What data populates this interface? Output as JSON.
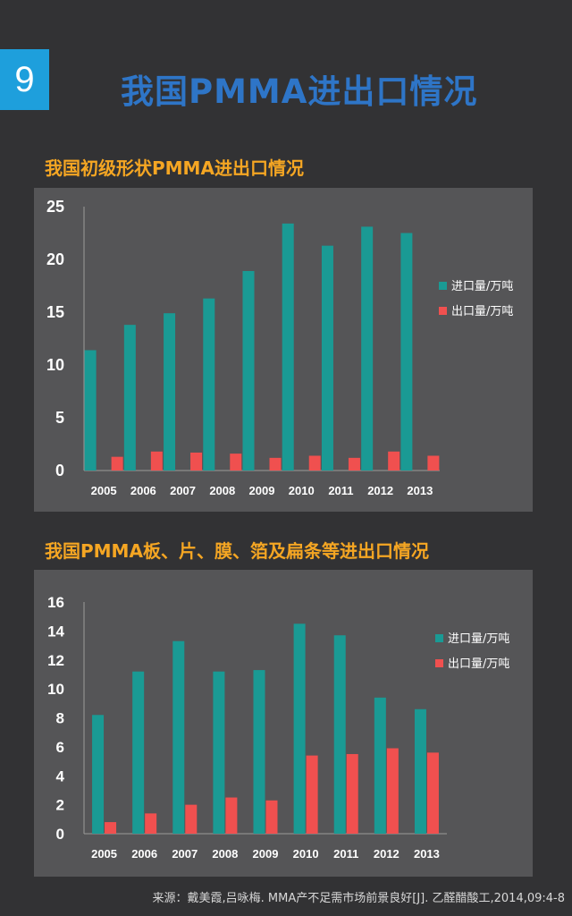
{
  "header": {
    "page_number": "9",
    "title": "我国PMMA进出口情况"
  },
  "sections": [
    {
      "title": "我国初级形状PMMA进出口情况"
    },
    {
      "title": "我国PMMA板、片、膜、箔及扁条等进出口情况"
    }
  ],
  "colors": {
    "import": "#1a9a94",
    "export": "#f0504f",
    "title": "#2e75c7",
    "subtitle": "#f5a623",
    "badge": "#1e9fdc"
  },
  "chart_data": [
    {
      "type": "bar",
      "title": "我国初级形状PMMA进出口情况",
      "categories": [
        "2005",
        "2006",
        "2007",
        "2008",
        "2009",
        "2010",
        "2011",
        "2012",
        "2013"
      ],
      "series": [
        {
          "name": "进口量/万吨",
          "values": [
            11.4,
            13.8,
            14.9,
            16.3,
            18.9,
            23.4,
            21.3,
            23.1,
            22.5
          ]
        },
        {
          "name": "出口量/万吨",
          "values": [
            1.3,
            1.8,
            1.7,
            1.6,
            1.2,
            1.4,
            1.2,
            1.8,
            1.4
          ]
        }
      ],
      "ylim": [
        0,
        25
      ],
      "yticks": [
        "0",
        "5",
        "10",
        "15",
        "20",
        "25"
      ],
      "grid": false,
      "legend": "right"
    },
    {
      "type": "bar",
      "title": "我国PMMA板、片、膜、箔及扁条等进出口情况",
      "categories": [
        "2005",
        "2006",
        "2007",
        "2008",
        "2009",
        "2010",
        "2011",
        "2012",
        "2013"
      ],
      "series": [
        {
          "name": "进口量/万吨",
          "values": [
            8.2,
            11.2,
            13.3,
            11.2,
            11.3,
            14.5,
            13.7,
            9.4,
            8.6
          ]
        },
        {
          "name": "出口量/万吨",
          "values": [
            0.8,
            1.4,
            2.0,
            2.5,
            2.3,
            5.4,
            5.5,
            5.9,
            5.6
          ]
        }
      ],
      "ylim": [
        0,
        16
      ],
      "yticks": [
        "0",
        "2",
        "4",
        "6",
        "8",
        "10",
        "12",
        "14",
        "16"
      ],
      "grid": false,
      "legend": "right"
    }
  ],
  "footer": {
    "source": "来源：戴美霞,吕咏梅. MMA产不足需市场前景良好[J]. 乙醛醋酸工,2014,09:4-8"
  }
}
